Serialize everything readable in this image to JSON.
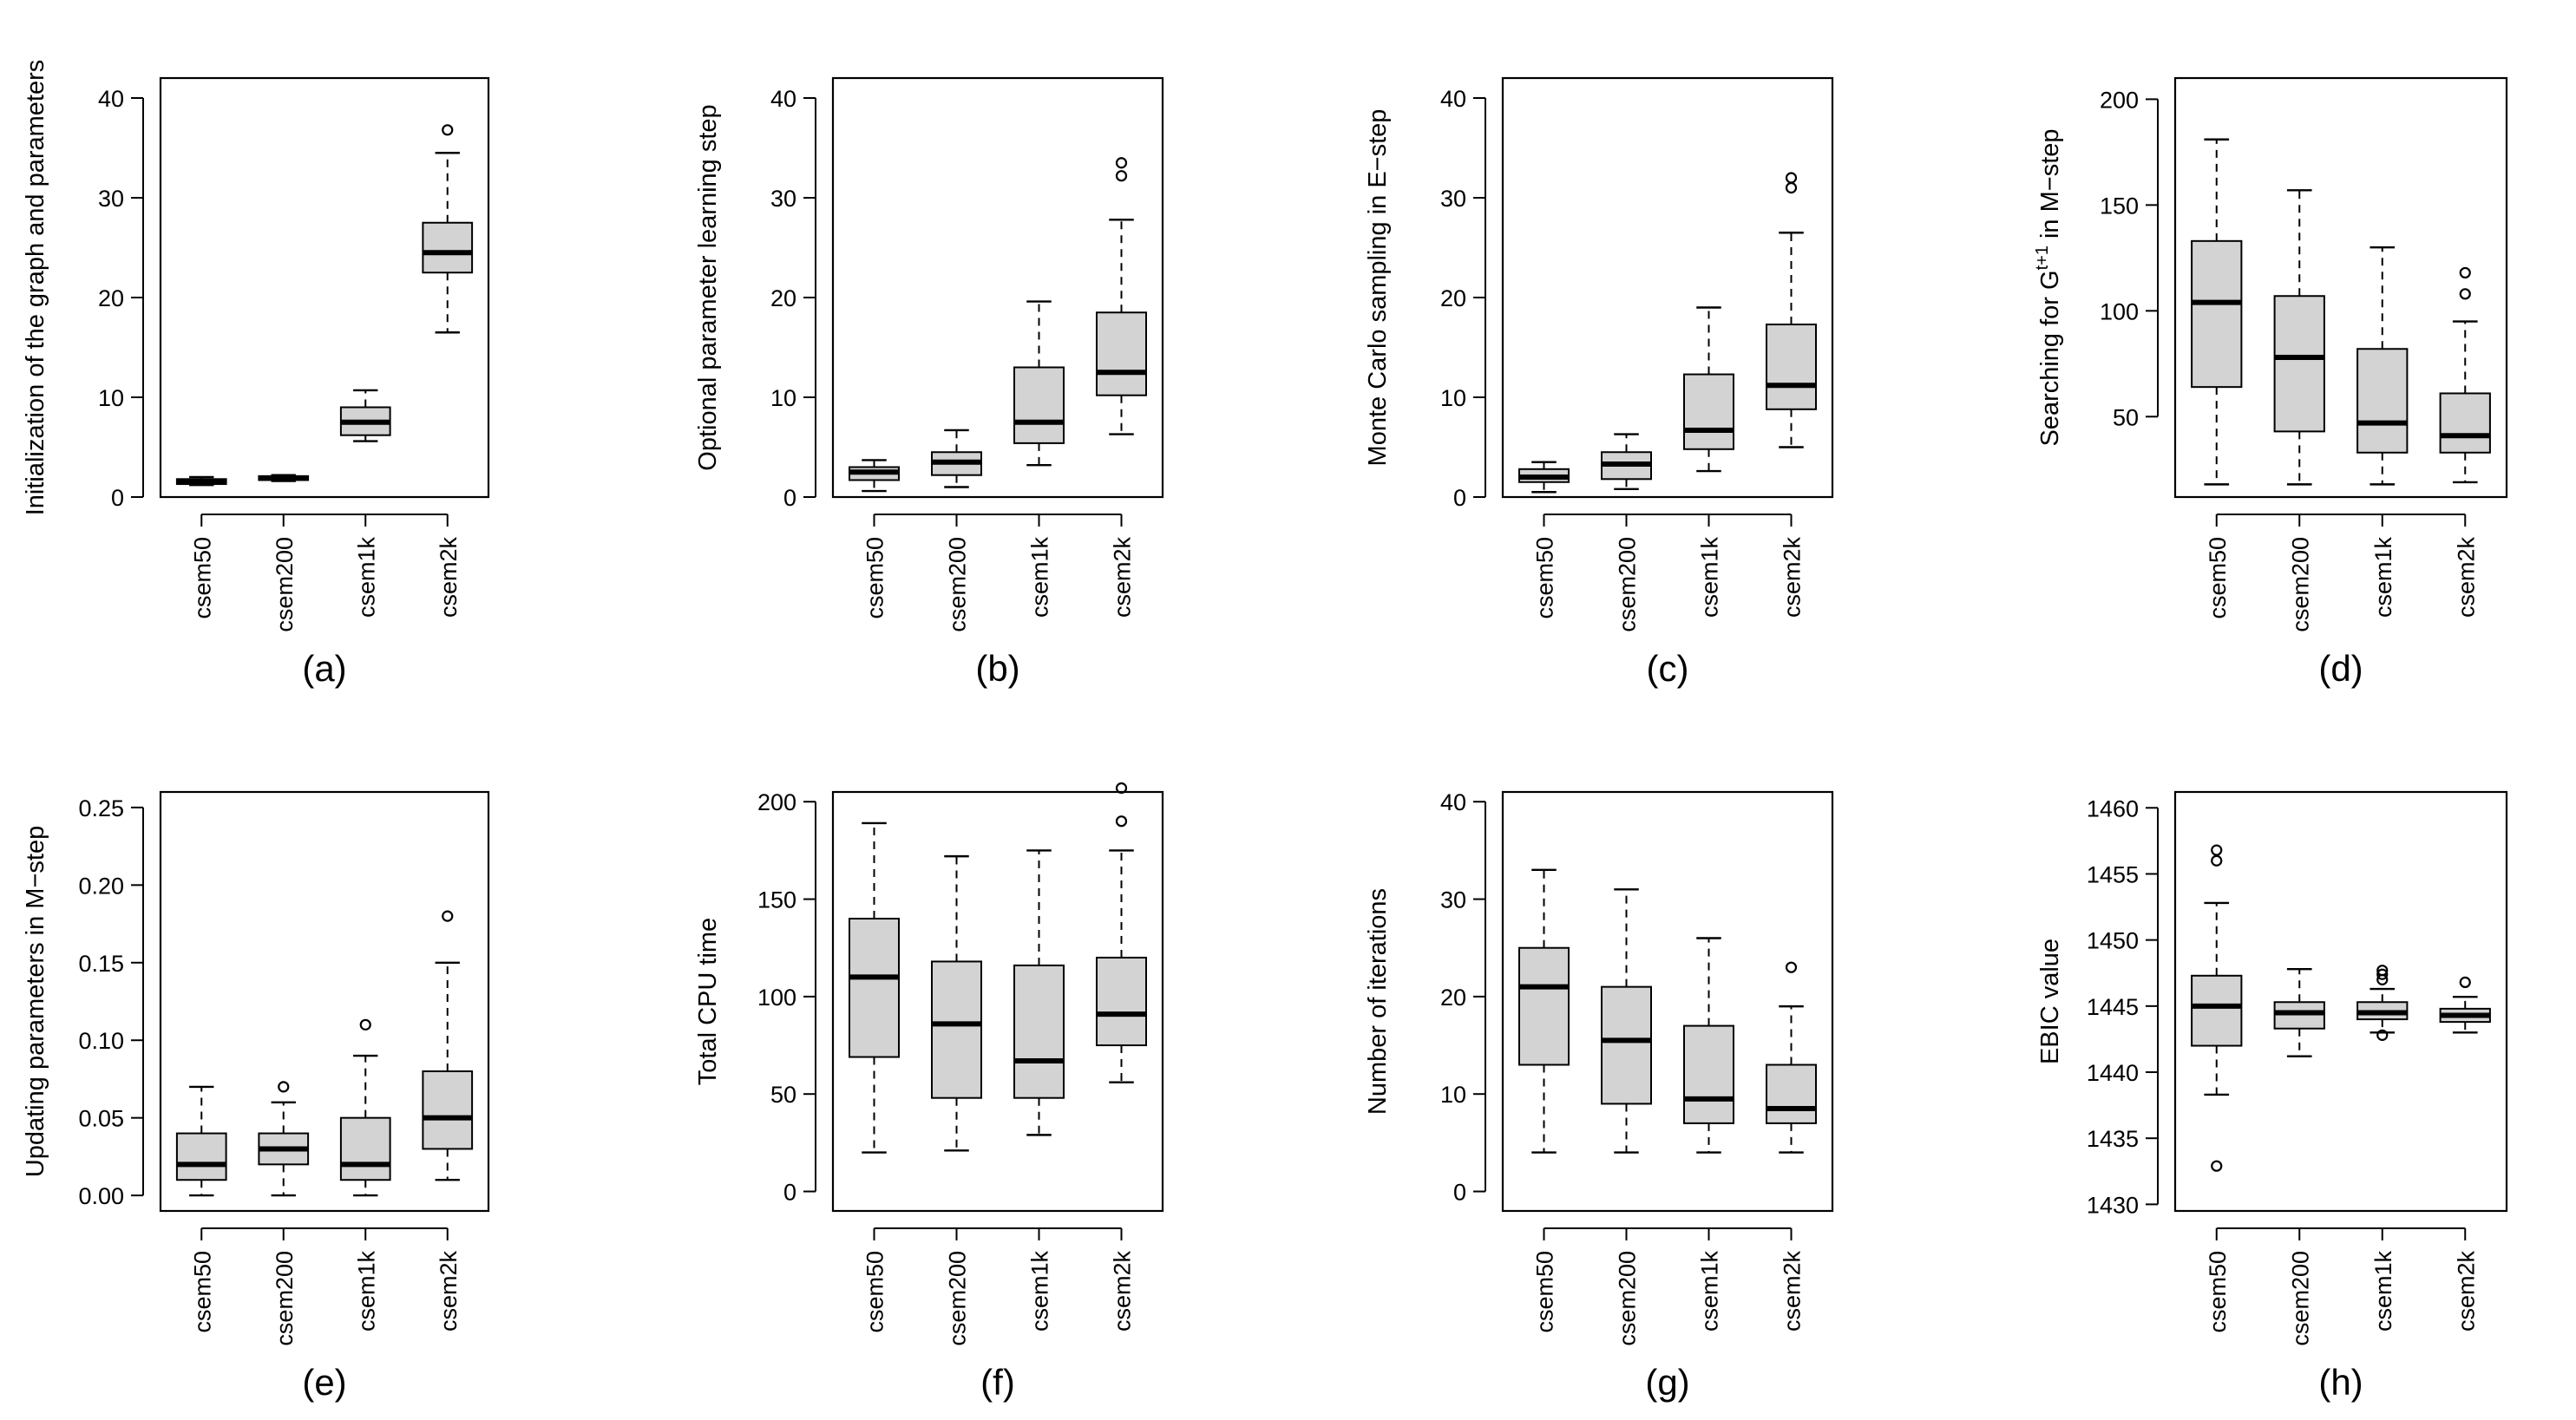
{
  "colors": {
    "box_fill": "#d3d3d3",
    "line": "#000000",
    "background": "#ffffff"
  },
  "chart_data": [
    {
      "type": "boxplot",
      "panel": "(a)",
      "ylabel": "Initialization of the graph and parameters",
      "ylim": [
        0,
        42
      ],
      "yticks": [
        0,
        10,
        20,
        30,
        40
      ],
      "categories": [
        "csem50",
        "csem200",
        "csem1k",
        "csem2k"
      ],
      "boxes": [
        {
          "q1": 1.3,
          "median": 1.6,
          "q3": 1.8,
          "whisker_low": 1.2,
          "whisker_high": 2.0,
          "outliers": []
        },
        {
          "q1": 1.7,
          "median": 1.9,
          "q3": 2.1,
          "whisker_low": 1.6,
          "whisker_high": 2.2,
          "outliers": []
        },
        {
          "q1": 6.2,
          "median": 7.5,
          "q3": 9.0,
          "whisker_low": 5.6,
          "whisker_high": 10.7,
          "outliers": []
        },
        {
          "q1": 22.5,
          "median": 24.5,
          "q3": 27.5,
          "whisker_low": 16.5,
          "whisker_high": 34.5,
          "outliers": [
            36.8
          ]
        }
      ]
    },
    {
      "type": "boxplot",
      "panel": "(b)",
      "ylabel": "Optional parameter learning step",
      "ylim": [
        0,
        42
      ],
      "yticks": [
        0,
        10,
        20,
        30,
        40
      ],
      "categories": [
        "csem50",
        "csem200",
        "csem1k",
        "csem2k"
      ],
      "boxes": [
        {
          "q1": 1.7,
          "median": 2.5,
          "q3": 3.0,
          "whisker_low": 0.6,
          "whisker_high": 3.7,
          "outliers": []
        },
        {
          "q1": 2.2,
          "median": 3.5,
          "q3": 4.5,
          "whisker_low": 1.0,
          "whisker_high": 6.7,
          "outliers": []
        },
        {
          "q1": 5.4,
          "median": 7.5,
          "q3": 13.0,
          "whisker_low": 3.2,
          "whisker_high": 19.6,
          "outliers": []
        },
        {
          "q1": 10.2,
          "median": 12.5,
          "q3": 18.5,
          "whisker_low": 6.3,
          "whisker_high": 27.8,
          "outliers": [
            32.2,
            33.5
          ]
        }
      ]
    },
    {
      "type": "boxplot",
      "panel": "(c)",
      "ylabel": "Monte Carlo sampling in E−step",
      "ylim": [
        0,
        42
      ],
      "yticks": [
        0,
        10,
        20,
        30,
        40
      ],
      "categories": [
        "csem50",
        "csem200",
        "csem1k",
        "csem2k"
      ],
      "boxes": [
        {
          "q1": 1.5,
          "median": 2.0,
          "q3": 2.8,
          "whisker_low": 0.5,
          "whisker_high": 3.5,
          "outliers": []
        },
        {
          "q1": 1.8,
          "median": 3.3,
          "q3": 4.5,
          "whisker_low": 0.8,
          "whisker_high": 6.3,
          "outliers": []
        },
        {
          "q1": 4.8,
          "median": 6.7,
          "q3": 12.3,
          "whisker_low": 2.6,
          "whisker_high": 19.0,
          "outliers": []
        },
        {
          "q1": 8.8,
          "median": 11.2,
          "q3": 17.3,
          "whisker_low": 5.0,
          "whisker_high": 26.5,
          "outliers": [
            31.0,
            32.0
          ]
        }
      ]
    },
    {
      "type": "boxplot",
      "panel": "(d)",
      "ylabel": "Searching for G",
      "ylabel_sup": "t+1",
      "ylabel_suffix": " in M−step",
      "ylim": [
        12,
        210
      ],
      "yticks": [
        50,
        100,
        150,
        200
      ],
      "categories": [
        "csem50",
        "csem200",
        "csem1k",
        "csem2k"
      ],
      "boxes": [
        {
          "q1": 64,
          "median": 104,
          "q3": 133,
          "whisker_low": 18,
          "whisker_high": 181,
          "outliers": []
        },
        {
          "q1": 43,
          "median": 78,
          "q3": 107,
          "whisker_low": 18,
          "whisker_high": 157,
          "outliers": []
        },
        {
          "q1": 33,
          "median": 47,
          "q3": 82,
          "whisker_low": 18,
          "whisker_high": 130,
          "outliers": []
        },
        {
          "q1": 33,
          "median": 41,
          "q3": 61,
          "whisker_low": 19,
          "whisker_high": 95,
          "outliers": [
            108,
            118
          ]
        }
      ]
    },
    {
      "type": "boxplot",
      "panel": "(e)",
      "ylabel": "Updating parameters in M−step",
      "ylim": [
        -0.01,
        0.26
      ],
      "yticks": [
        0.0,
        0.05,
        0.1,
        0.15,
        0.2,
        0.25
      ],
      "ytick_labels": [
        "0.00",
        "0.05",
        "0.10",
        "0.15",
        "0.20",
        "0.25"
      ],
      "categories": [
        "csem50",
        "csem200",
        "csem1k",
        "csem2k"
      ],
      "boxes": [
        {
          "q1": 0.01,
          "median": 0.02,
          "q3": 0.04,
          "whisker_low": 0.0,
          "whisker_high": 0.07,
          "outliers": []
        },
        {
          "q1": 0.02,
          "median": 0.03,
          "q3": 0.04,
          "whisker_low": 0.0,
          "whisker_high": 0.06,
          "outliers": [
            0.07
          ]
        },
        {
          "q1": 0.01,
          "median": 0.02,
          "q3": 0.05,
          "whisker_low": 0.0,
          "whisker_high": 0.09,
          "outliers": [
            0.11
          ]
        },
        {
          "q1": 0.03,
          "median": 0.05,
          "q3": 0.08,
          "whisker_low": 0.01,
          "whisker_high": 0.15,
          "outliers": [
            0.18
          ]
        }
      ]
    },
    {
      "type": "boxplot",
      "panel": "(f)",
      "ylabel": "Total CPU time",
      "ylim": [
        -10,
        205
      ],
      "yticks": [
        0,
        50,
        100,
        150,
        200
      ],
      "categories": [
        "csem50",
        "csem200",
        "csem1k",
        "csem2k"
      ],
      "boxes": [
        {
          "q1": 69,
          "median": 110,
          "q3": 140,
          "whisker_low": 20,
          "whisker_high": 189,
          "outliers": []
        },
        {
          "q1": 48,
          "median": 86,
          "q3": 118,
          "whisker_low": 21,
          "whisker_high": 172,
          "outliers": []
        },
        {
          "q1": 48,
          "median": 67,
          "q3": 116,
          "whisker_low": 29,
          "whisker_high": 175,
          "outliers": []
        },
        {
          "q1": 75,
          "median": 91,
          "q3": 120,
          "whisker_low": 56,
          "whisker_high": 175,
          "outliers": [
            190,
            207
          ]
        }
      ]
    },
    {
      "type": "boxplot",
      "panel": "(g)",
      "ylabel": "Number of iterations",
      "ylim": [
        -2,
        41
      ],
      "yticks": [
        0,
        10,
        20,
        30,
        40
      ],
      "categories": [
        "csem50",
        "csem200",
        "csem1k",
        "csem2k"
      ],
      "boxes": [
        {
          "q1": 13,
          "median": 21,
          "q3": 25,
          "whisker_low": 4,
          "whisker_high": 33,
          "outliers": []
        },
        {
          "q1": 9,
          "median": 15.5,
          "q3": 21,
          "whisker_low": 4,
          "whisker_high": 31,
          "outliers": []
        },
        {
          "q1": 7,
          "median": 9.5,
          "q3": 17,
          "whisker_low": 4,
          "whisker_high": 26,
          "outliers": []
        },
        {
          "q1": 7,
          "median": 8.5,
          "q3": 13,
          "whisker_low": 4,
          "whisker_high": 19,
          "outliers": [
            23
          ]
        }
      ]
    },
    {
      "type": "boxplot",
      "panel": "(h)",
      "ylabel": "EBIC value",
      "ylim": [
        1429.5,
        1461.2
      ],
      "yticks": [
        1430,
        1435,
        1440,
        1445,
        1450,
        1455,
        1460
      ],
      "categories": [
        "csem50",
        "csem200",
        "csem1k",
        "csem2k"
      ],
      "boxes": [
        {
          "q1": 1442.0,
          "median": 1445.0,
          "q3": 1447.3,
          "whisker_low": 1438.3,
          "whisker_high": 1452.8,
          "outliers": [
            1432.9,
            1456.0,
            1456.8
          ]
        },
        {
          "q1": 1443.3,
          "median": 1444.5,
          "q3": 1445.3,
          "whisker_low": 1441.2,
          "whisker_high": 1447.8,
          "outliers": []
        },
        {
          "q1": 1444.0,
          "median": 1444.5,
          "q3": 1445.3,
          "whisker_low": 1443.0,
          "whisker_high": 1446.3,
          "outliers": [
            1442.8,
            1447.0,
            1447.4,
            1447.7
          ]
        },
        {
          "q1": 1443.8,
          "median": 1444.3,
          "q3": 1444.8,
          "whisker_low": 1443.0,
          "whisker_high": 1445.7,
          "outliers": [
            1446.8
          ]
        }
      ]
    }
  ]
}
